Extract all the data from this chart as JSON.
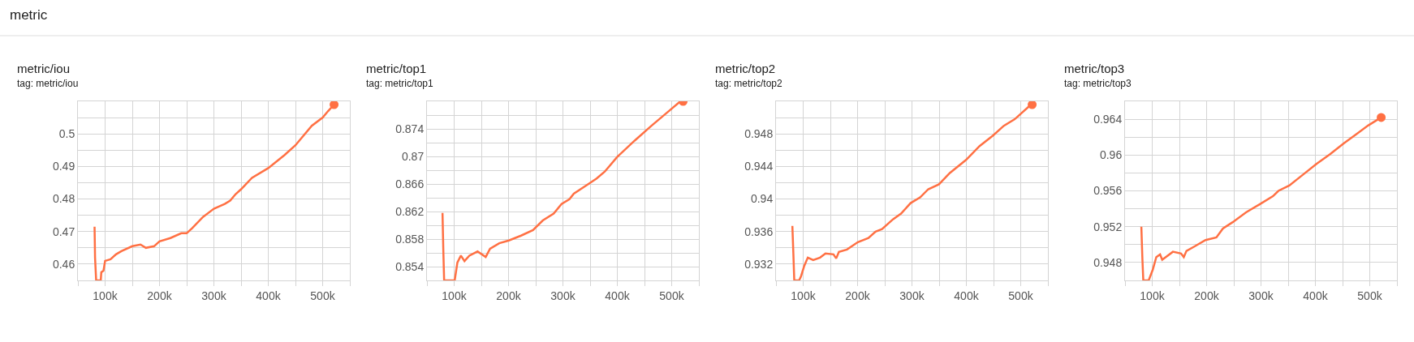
{
  "chart_data": [
    {
      "type": "other",
      "title": "metric"
    },
    {
      "type": "line",
      "title": "metric/iou",
      "subtitle": "tag: metric/iou",
      "grid": true,
      "xlim": [
        50000,
        550000
      ],
      "xticks": [
        {
          "value": 50000,
          "label": null
        },
        {
          "value": 100000,
          "label": "100k"
        },
        {
          "value": 150000,
          "label": null
        },
        {
          "value": 200000,
          "label": "200k"
        },
        {
          "value": 250000,
          "label": null
        },
        {
          "value": 300000,
          "label": "300k"
        },
        {
          "value": 350000,
          "label": null
        },
        {
          "value": 400000,
          "label": "400k"
        },
        {
          "value": 450000,
          "label": null
        },
        {
          "value": 500000,
          "label": "500k"
        },
        {
          "value": 550000,
          "label": null
        }
      ],
      "ylim": [
        0.455,
        0.51
      ],
      "yticks": [
        {
          "value": 0.455,
          "label": null
        },
        0.46,
        {
          "value": 0.465,
          "label": null
        },
        0.47,
        {
          "value": 0.475,
          "label": null
        },
        0.48,
        {
          "value": 0.485,
          "label": null
        },
        0.49,
        {
          "value": 0.495,
          "label": null
        },
        0.5,
        {
          "value": 0.505,
          "label": null
        },
        {
          "value": 0.51,
          "label": null
        }
      ],
      "series": [
        {
          "color": "#ff7043",
          "marker": "none",
          "x": [
            80600,
            81500,
            83500,
            92000,
            93000,
            97000,
            100000,
            110000,
            120000,
            130000,
            150000,
            165000,
            175000,
            190000,
            200000,
            220000,
            240000,
            250000,
            260000,
            280000,
            300000,
            320000,
            330000,
            340000,
            350000,
            370000,
            400000,
            430000,
            450000,
            480000,
            500000,
            510000,
            521000
          ],
          "values": [
            0.4715,
            0.462,
            0.455,
            0.455,
            0.4575,
            0.458,
            0.461,
            0.4615,
            0.463,
            0.464,
            0.4655,
            0.466,
            0.465,
            0.4655,
            0.467,
            0.468,
            0.4695,
            0.4695,
            0.471,
            0.4745,
            0.477,
            0.4785,
            0.4795,
            0.4815,
            0.483,
            0.4865,
            0.4895,
            0.4935,
            0.4965,
            0.5025,
            0.505,
            0.507,
            0.509
          ]
        },
        {
          "type": "scatter",
          "color": "#ff7043",
          "marker": "circle",
          "x": [
            521000
          ],
          "values": [
            0.509
          ]
        }
      ]
    },
    {
      "type": "line",
      "title": "metric/top1",
      "subtitle": "tag: metric/top1",
      "grid": true,
      "xlim": [
        50000,
        550000
      ],
      "xticks": [
        {
          "value": 50000,
          "label": null
        },
        {
          "value": 100000,
          "label": "100k"
        },
        {
          "value": 150000,
          "label": null
        },
        {
          "value": 200000,
          "label": "200k"
        },
        {
          "value": 250000,
          "label": null
        },
        {
          "value": 300000,
          "label": "300k"
        },
        {
          "value": 350000,
          "label": null
        },
        {
          "value": 400000,
          "label": "400k"
        },
        {
          "value": 450000,
          "label": null
        },
        {
          "value": 500000,
          "label": "500k"
        },
        {
          "value": 550000,
          "label": null
        }
      ],
      "ylim": [
        0.852,
        0.878
      ],
      "yticks": [
        {
          "value": 0.852,
          "label": null
        },
        0.854,
        {
          "value": 0.856,
          "label": null
        },
        0.858,
        {
          "value": 0.86,
          "label": null
        },
        0.862,
        {
          "value": 0.864,
          "label": null
        },
        0.866,
        {
          "value": 0.868,
          "label": null
        },
        0.87,
        {
          "value": 0.872,
          "label": null
        },
        0.874,
        {
          "value": 0.876,
          "label": null
        },
        {
          "value": 0.878,
          "label": null
        }
      ],
      "series": [
        {
          "color": "#ff7043",
          "marker": "none",
          "x": [
            78600,
            80000,
            81600,
            101000,
            106000,
            112400,
            119000,
            128000,
            143000,
            158000,
            166000,
            183000,
            200500,
            223000,
            245000,
            263000,
            283000,
            297500,
            312000,
            320000,
            347000,
            362000,
            377000,
            399500,
            432000,
            462000,
            492000,
            516000,
            521000
          ],
          "values": [
            0.8618,
            0.8566,
            0.852,
            0.852,
            0.8546,
            0.8556,
            0.8548,
            0.8556,
            0.8562,
            0.8554,
            0.8566,
            0.8574,
            0.8578,
            0.8585,
            0.8593,
            0.8607,
            0.8617,
            0.8631,
            0.8638,
            0.8646,
            0.866,
            0.8668,
            0.8678,
            0.8699,
            0.8723,
            0.8744,
            0.8764,
            0.878,
            0.878
          ]
        },
        {
          "type": "scatter",
          "color": "#ff7043",
          "marker": "circle",
          "x": [
            521000
          ],
          "values": [
            0.878
          ]
        }
      ]
    },
    {
      "type": "line",
      "title": "metric/top2",
      "subtitle": "tag: metric/top2",
      "grid": true,
      "xlim": [
        50000,
        550000
      ],
      "xticks": [
        {
          "value": 50000,
          "label": null
        },
        {
          "value": 100000,
          "label": "100k"
        },
        {
          "value": 150000,
          "label": null
        },
        {
          "value": 200000,
          "label": "200k"
        },
        {
          "value": 250000,
          "label": null
        },
        {
          "value": 300000,
          "label": "300k"
        },
        {
          "value": 350000,
          "label": null
        },
        {
          "value": 400000,
          "label": "400k"
        },
        {
          "value": 450000,
          "label": null
        },
        {
          "value": 500000,
          "label": "500k"
        },
        {
          "value": 550000,
          "label": null
        }
      ],
      "ylim": [
        0.93,
        0.952
      ],
      "yticks": [
        {
          "value": 0.93,
          "label": null
        },
        0.932,
        {
          "value": 0.934,
          "label": null
        },
        0.936,
        {
          "value": 0.938,
          "label": null
        },
        0.94,
        {
          "value": 0.942,
          "label": null
        },
        0.944,
        {
          "value": 0.946,
          "label": null
        },
        0.948,
        {
          "value": 0.95,
          "label": null
        },
        {
          "value": 0.952,
          "label": null
        }
      ],
      "series": [
        {
          "color": "#ff7043",
          "marker": "none",
          "x": [
            80100,
            82000,
            83600,
            92500,
            96000,
            102000,
            108500,
            118400,
            131000,
            141000,
            155700,
            160700,
            165700,
            180600,
            200500,
            220000,
            233000,
            245000,
            265000,
            280000,
            297500,
            315000,
            330000,
            349700,
            369600,
            399500,
            424400,
            449000,
            469000,
            489000,
            519000
          ],
          "values": [
            0.9367,
            0.9332,
            0.93,
            0.93,
            0.9305,
            0.9318,
            0.9328,
            0.9325,
            0.9328,
            0.9333,
            0.9332,
            0.9327,
            0.9335,
            0.9338,
            0.9347,
            0.9352,
            0.936,
            0.9363,
            0.9375,
            0.9382,
            0.9395,
            0.9402,
            0.9412,
            0.9418,
            0.9432,
            0.9448,
            0.9465,
            0.9478,
            0.949,
            0.9498,
            0.9516
          ]
        },
        {
          "type": "scatter",
          "color": "#ff7043",
          "marker": "circle",
          "x": [
            521000
          ],
          "values": [
            0.9516
          ]
        }
      ]
    },
    {
      "type": "line",
      "title": "metric/top3",
      "subtitle": "tag: metric/top3",
      "grid": true,
      "xlim": [
        50000,
        550000
      ],
      "xticks": [
        {
          "value": 50000,
          "label": null
        },
        {
          "value": 100000,
          "label": "100k"
        },
        {
          "value": 150000,
          "label": null
        },
        {
          "value": 200000,
          "label": "200k"
        },
        {
          "value": 250000,
          "label": null
        },
        {
          "value": 300000,
          "label": "300k"
        },
        {
          "value": 350000,
          "label": null
        },
        {
          "value": 400000,
          "label": "400k"
        },
        {
          "value": 450000,
          "label": null
        },
        {
          "value": 500000,
          "label": "500k"
        },
        {
          "value": 550000,
          "label": null
        }
      ],
      "ylim": [
        0.946,
        0.966
      ],
      "yticks": [
        {
          "value": 0.946,
          "label": null
        },
        0.948,
        {
          "value": 0.95,
          "label": null
        },
        0.952,
        {
          "value": 0.954,
          "label": null
        },
        0.956,
        {
          "value": 0.958,
          "label": null
        },
        0.96,
        {
          "value": 0.962,
          "label": null
        },
        0.964,
        {
          "value": 0.966,
          "label": null
        }
      ],
      "series": [
        {
          "color": "#ff7043",
          "marker": "none",
          "x": [
            80000,
            82000,
            83600,
            93500,
            101000,
            107500,
            114400,
            118400,
            138000,
            153000,
            158000,
            163000,
            178000,
            198000,
            218000,
            230000,
            248000,
            272600,
            297500,
            322000,
            332000,
            352000,
            377000,
            402000,
            427000,
            452000,
            477000,
            497000,
            521000
          ],
          "values": [
            0.952,
            0.9483,
            0.946,
            0.946,
            0.9472,
            0.9486,
            0.9489,
            0.9483,
            0.9492,
            0.949,
            0.9486,
            0.9493,
            0.9498,
            0.9505,
            0.9508,
            0.9518,
            0.9525,
            0.9536,
            0.9545,
            0.9554,
            0.956,
            0.9566,
            0.9578,
            0.959,
            0.9601,
            0.9613,
            0.9624,
            0.9633,
            0.9642
          ]
        },
        {
          "type": "scatter",
          "color": "#ff7043",
          "marker": "circle",
          "x": [
            521000
          ],
          "values": [
            0.9642
          ]
        }
      ]
    }
  ]
}
